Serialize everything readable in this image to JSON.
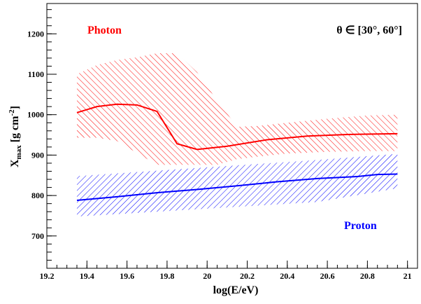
{
  "chart_data": {
    "type": "line",
    "xlabel": "log(E/eV)",
    "ylabel": {
      "main": "X",
      "sub": "max",
      "unit_prefix": " [g cm",
      "sup": "-2",
      "unit_suffix": "]"
    },
    "xlim": [
      19.2,
      21.05
    ],
    "ylim": [
      620,
      1275
    ],
    "x_ticks": [
      19.2,
      19.4,
      19.6,
      19.8,
      20,
      20.2,
      20.4,
      20.6,
      20.8,
      21
    ],
    "x_tick_labels": [
      "19.2",
      "19.4",
      "19.6",
      "19.8",
      "20",
      "20.2",
      "20.4",
      "20.6",
      "20.8",
      "21"
    ],
    "y_ticks": [
      700,
      800,
      900,
      1000,
      1100,
      1200
    ],
    "y_tick_labels": [
      "700",
      "800",
      "900",
      "1000",
      "1100",
      "1200"
    ],
    "annotation": "θ ∈ [30°, 60°]",
    "grid": false,
    "series": [
      {
        "name": "Photon",
        "color": "#ff0000",
        "x": [
          19.35,
          19.45,
          19.55,
          19.65,
          19.75,
          19.85,
          19.95,
          20.1,
          20.3,
          20.5,
          20.7,
          20.95
        ],
        "mean": [
          1005,
          1020,
          1026,
          1024,
          1008,
          928,
          914,
          922,
          938,
          947,
          951,
          953
        ],
        "band_x": [
          19.35,
          19.45,
          19.55,
          19.65,
          19.75,
          19.85,
          19.95,
          20.05,
          20.15,
          20.25,
          20.4,
          20.6,
          20.8,
          20.95
        ],
        "band_upper": [
          1100,
          1123,
          1135,
          1142,
          1152,
          1152,
          1105,
          1035,
          970,
          972,
          980,
          990,
          998,
          1000
        ],
        "band_lower": [
          943,
          943,
          935,
          905,
          876,
          876,
          876,
          876,
          890,
          896,
          904,
          908,
          910,
          910
        ]
      },
      {
        "name": "Proton",
        "color": "#0000ff",
        "x": [
          19.35,
          19.55,
          19.75,
          19.95,
          20.15,
          20.35,
          20.55,
          20.75,
          20.85,
          20.95
        ],
        "mean": [
          788,
          797,
          807,
          815,
          824,
          834,
          842,
          847,
          852,
          853
        ],
        "band_x": [
          19.35,
          19.95,
          20.55,
          20.95
        ],
        "band_upper": [
          848,
          868,
          888,
          903
        ],
        "band_lower": [
          748,
          766,
          784,
          818
        ]
      }
    ]
  }
}
